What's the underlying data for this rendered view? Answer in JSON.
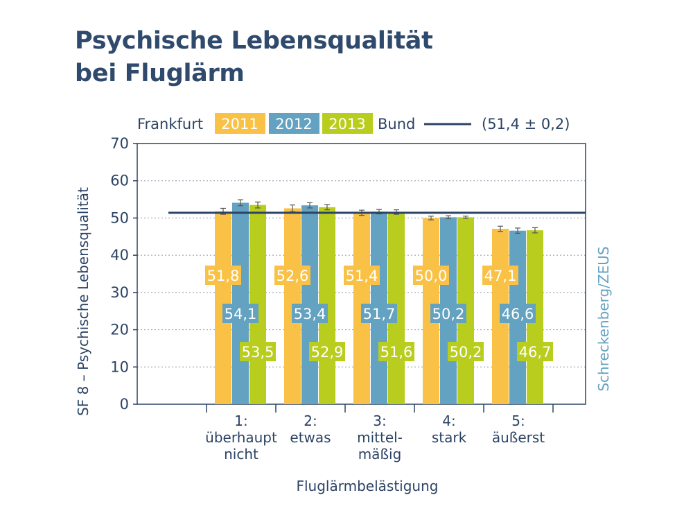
{
  "title": {
    "line1": "Psychische Lebensqualität",
    "line2": "bei Fluglärm"
  },
  "legend": {
    "group_label": "Frankfurt",
    "years": [
      "2011",
      "2012",
      "2013"
    ],
    "reference_label": "Bund",
    "reference_value_text": "(51,4 ± 0,2)"
  },
  "source": "Schreckenberg/ZEUS",
  "colors": {
    "2011": "#f9c246",
    "2012": "#64a2c1",
    "2013": "#b9cd1f",
    "reference_line": "#2b4364",
    "frame": "#2b4364",
    "error_bar": "#555555"
  },
  "chart_data": {
    "type": "bar",
    "title": "Psychische Lebensqualität bei Fluglärm",
    "xlabel": "Fluglärmbelästigung",
    "ylabel": "SF 8 – Psychische Lebensqualität",
    "ylim": [
      0,
      70
    ],
    "yticks": [
      0,
      10,
      20,
      30,
      40,
      50,
      60,
      70
    ],
    "grid": true,
    "legend_position": "top",
    "categories": [
      [
        "1:",
        "überhaupt",
        "nicht"
      ],
      [
        "2:",
        "etwas"
      ],
      [
        "3:",
        "mittel-",
        "mäßig"
      ],
      [
        "4:",
        "stark"
      ],
      [
        "5:",
        "äußerst"
      ]
    ],
    "series": [
      {
        "name": "2011",
        "values": [
          51.8,
          52.6,
          51.4,
          50.0,
          47.1
        ],
        "labels": [
          "51,8",
          "52,6",
          "51,4",
          "50,0",
          "47,1"
        ],
        "error": [
          0.8,
          0.9,
          0.7,
          0.5,
          0.7
        ]
      },
      {
        "name": "2012",
        "values": [
          54.1,
          53.4,
          51.7,
          50.2,
          46.6
        ],
        "labels": [
          "54,1",
          "53,4",
          "51,7",
          "50,2",
          "46,6"
        ],
        "error": [
          0.8,
          0.7,
          0.6,
          0.4,
          0.7
        ]
      },
      {
        "name": "2013",
        "values": [
          53.5,
          52.9,
          51.6,
          50.2,
          46.7
        ],
        "labels": [
          "53,5",
          "52,9",
          "51,6",
          "50,2",
          "46,7"
        ],
        "error": [
          0.8,
          0.7,
          0.6,
          0.3,
          0.7
        ]
      }
    ],
    "reference": {
      "name": "Bund",
      "value": 51.4,
      "error": 0.2
    }
  }
}
